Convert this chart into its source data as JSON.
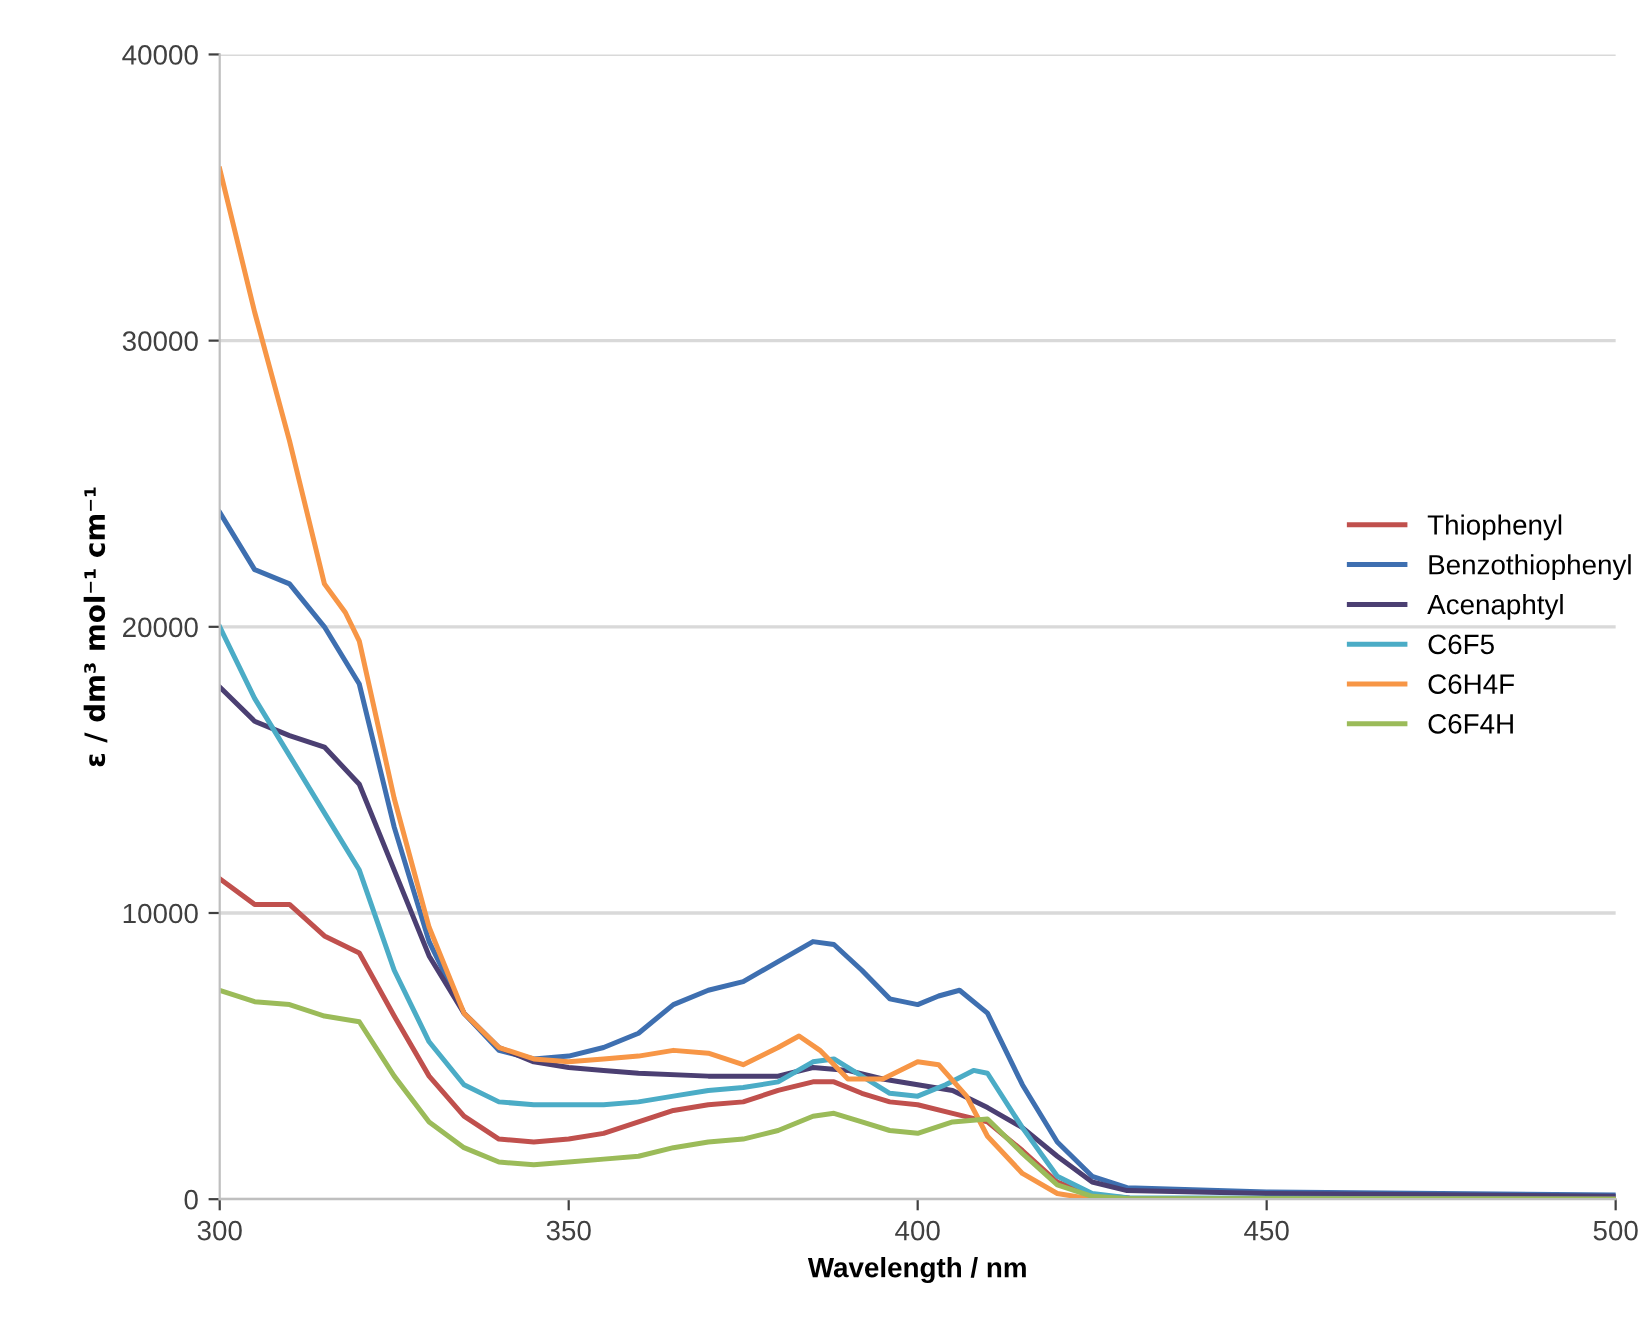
{
  "chart_data": {
    "type": "line",
    "xlabel": "Wavelength / nm",
    "ylabel": "ε / dm³ mol⁻¹ cm⁻¹",
    "xlim": [
      300,
      500
    ],
    "xticks": [
      300,
      350,
      400,
      450,
      500
    ],
    "ylim": [
      0,
      40000
    ],
    "yticks": [
      0,
      10000,
      20000,
      30000,
      40000
    ],
    "grid": "y",
    "legend": "right",
    "marker": "none",
    "line_style": "solid",
    "series": [
      {
        "name": "Thiophenyl",
        "color": "#c0504d",
        "x": [
          300,
          305,
          310,
          315,
          320,
          325,
          330,
          335,
          340,
          345,
          350,
          355,
          360,
          365,
          370,
          375,
          380,
          385,
          388,
          392,
          396,
          400,
          405,
          410,
          415,
          420,
          425,
          430
        ],
        "values": [
          11200,
          10300,
          10300,
          9200,
          8600,
          6400,
          4300,
          2900,
          2100,
          2000,
          2100,
          2300,
          2700,
          3100,
          3300,
          3400,
          3800,
          4100,
          4100,
          3700,
          3400,
          3300,
          3000,
          2700,
          1700,
          600,
          150,
          50
        ]
      },
      {
        "name": "Benzothiophenyl",
        "color": "#3e6fb0",
        "x": [
          300,
          305,
          310,
          315,
          320,
          325,
          330,
          335,
          340,
          345,
          350,
          355,
          360,
          365,
          370,
          375,
          380,
          385,
          388,
          392,
          396,
          400,
          403,
          406,
          410,
          415,
          420,
          425,
          430,
          450,
          500
        ],
        "values": [
          24000,
          22000,
          21500,
          20000,
          18000,
          13000,
          9000,
          6500,
          5200,
          4900,
          5000,
          5300,
          5800,
          6800,
          7300,
          7600,
          8300,
          9000,
          8900,
          8000,
          7000,
          6800,
          7100,
          7300,
          6500,
          4000,
          2000,
          800,
          400,
          250,
          150
        ]
      },
      {
        "name": "Acenaphtyl",
        "color": "#4b3f72",
        "x": [
          300,
          305,
          310,
          315,
          320,
          325,
          330,
          335,
          340,
          345,
          350,
          355,
          360,
          370,
          380,
          385,
          390,
          395,
          400,
          405,
          410,
          415,
          420,
          425,
          430,
          450,
          500
        ],
        "values": [
          17900,
          16700,
          16200,
          15800,
          14500,
          11500,
          8500,
          6500,
          5300,
          4800,
          4600,
          4500,
          4400,
          4300,
          4300,
          4600,
          4500,
          4200,
          4000,
          3800,
          3200,
          2500,
          1500,
          600,
          300,
          200,
          100
        ]
      },
      {
        "name": "C6F5",
        "color": "#4bacc6",
        "x": [
          300,
          305,
          310,
          315,
          320,
          325,
          330,
          335,
          340,
          345,
          350,
          355,
          360,
          365,
          370,
          375,
          380,
          385,
          388,
          392,
          396,
          400,
          404,
          408,
          410,
          415,
          420,
          425,
          430,
          500
        ],
        "values": [
          20000,
          17500,
          15500,
          13500,
          11500,
          8000,
          5500,
          4000,
          3400,
          3300,
          3300,
          3300,
          3400,
          3600,
          3800,
          3900,
          4100,
          4800,
          4900,
          4300,
          3700,
          3600,
          4000,
          4500,
          4400,
          2500,
          800,
          200,
          50,
          0
        ]
      },
      {
        "name": "C6H4F",
        "color": "#f79646",
        "x": [
          300,
          305,
          310,
          315,
          318,
          320,
          325,
          330,
          335,
          340,
          345,
          350,
          355,
          360,
          365,
          370,
          375,
          380,
          383,
          386,
          390,
          395,
          400,
          403,
          407,
          410,
          415,
          420,
          425,
          450,
          500
        ],
        "values": [
          36000,
          31000,
          26500,
          21500,
          20500,
          19500,
          14000,
          9500,
          6500,
          5300,
          4900,
          4800,
          4900,
          5000,
          5200,
          5100,
          4700,
          5300,
          5700,
          5200,
          4200,
          4200,
          4800,
          4700,
          3600,
          2200,
          900,
          200,
          0,
          0,
          0
        ]
      },
      {
        "name": "C6F4H",
        "color": "#9bbb59",
        "x": [
          300,
          305,
          310,
          315,
          320,
          325,
          330,
          335,
          340,
          345,
          350,
          355,
          360,
          365,
          370,
          375,
          380,
          385,
          388,
          392,
          396,
          400,
          405,
          410,
          415,
          420,
          425,
          430,
          500
        ],
        "values": [
          7300,
          6900,
          6800,
          6400,
          6200,
          4300,
          2700,
          1800,
          1300,
          1200,
          1300,
          1400,
          1500,
          1800,
          2000,
          2100,
          2400,
          2900,
          3000,
          2700,
          2400,
          2300,
          2700,
          2800,
          1600,
          500,
          100,
          20,
          0
        ]
      }
    ]
  }
}
